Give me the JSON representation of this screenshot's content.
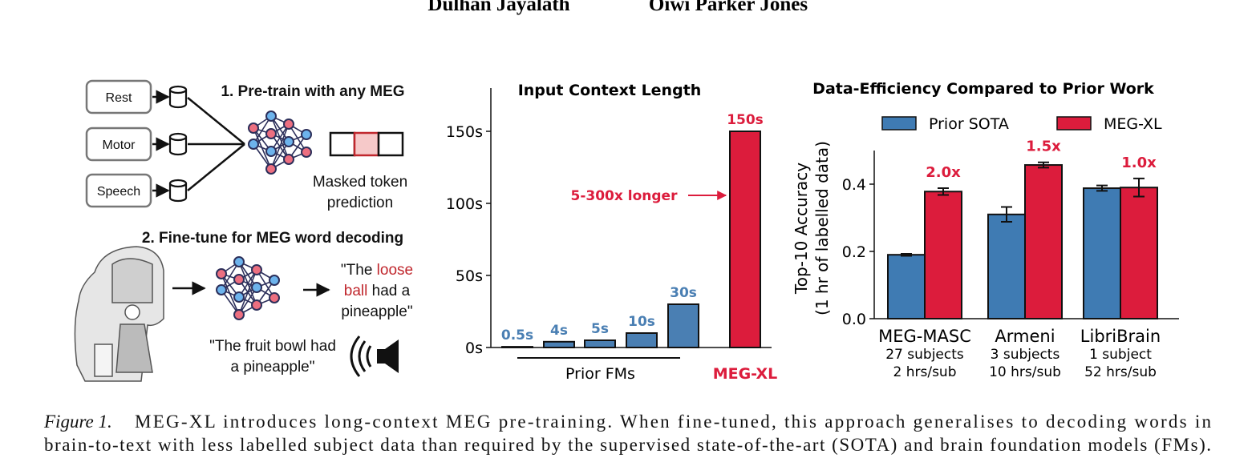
{
  "header": {
    "authors": [
      "Dulhan Jayalath",
      "Oiwi Parker Jones"
    ]
  },
  "diagram": {
    "inputs": [
      "Rest",
      "Motor",
      "Speech"
    ],
    "step1": "1. Pre-train with any MEG",
    "masked_label": [
      "Masked token",
      "prediction"
    ],
    "step2": "2. Fine-tune for MEG word decoding",
    "stimulus": [
      "\"The fruit bowl had",
      "a pineapple\""
    ],
    "decoded": [
      [
        {
          "text": "\"The "
        },
        {
          "text": "loose",
          "highlight": true
        }
      ],
      [
        {
          "text": "ball",
          "highlight": true
        },
        {
          "text": " had a"
        }
      ],
      [
        {
          "text": "pineapple\""
        }
      ]
    ],
    "highlight_color": "#c0272d"
  },
  "chart_data": [
    {
      "type": "bar",
      "title": "Input Context Length",
      "categories": [
        null,
        null,
        null,
        null,
        null,
        null
      ],
      "values": [
        0.5,
        4,
        5,
        10,
        30,
        150
      ],
      "value_labels": [
        "0.5s",
        "4s",
        "5s",
        "10s",
        "30s",
        "150s"
      ],
      "colors": [
        "#4a7fb3",
        "#4a7fb3",
        "#4a7fb3",
        "#4a7fb3",
        "#4a7fb3",
        "#dc1c3c"
      ],
      "ylim": [
        0,
        180
      ],
      "yticks": [
        {
          "value": 0,
          "label": "0s"
        },
        {
          "value": 50,
          "label": "50s"
        },
        {
          "value": 100,
          "label": "100s"
        },
        {
          "value": 150,
          "label": "150s"
        }
      ],
      "groups": [
        {
          "label": "Prior FMs"
        },
        {
          "label": "MEG-XL",
          "color": "#dc1c3c"
        }
      ],
      "annotation": {
        "text": "5-300x longer",
        "color": "#dc1c3c"
      }
    },
    {
      "type": "grouped_bar",
      "title": "Data-Efficiency Compared to Prior Work",
      "ylabel": [
        "Top-10 Accuracy",
        "(1 hr of labelled data)"
      ],
      "categories": [
        "MEG-MASC",
        "Armeni",
        "LibriBrain"
      ],
      "category_details": [
        [
          "27 subjects",
          "2 hrs/sub"
        ],
        [
          "3 subjects",
          "10 hrs/sub"
        ],
        [
          "1 subject",
          "52 hrs/sub"
        ]
      ],
      "series": [
        {
          "name": "Prior SOTA",
          "color": "#3f7bb3",
          "values": [
            0.19,
            0.31,
            0.388
          ],
          "errors": [
            0.003,
            0.022,
            0.008
          ]
        },
        {
          "name": "MEG-XL",
          "color": "#dc1c3c",
          "values": [
            0.378,
            0.457,
            0.39
          ],
          "errors": [
            0.01,
            0.008,
            0.027
          ]
        }
      ],
      "annotations": [
        "2.0x",
        "1.5x",
        "1.0x"
      ],
      "annotation_color": "#dc1c3c",
      "ylim": [
        0,
        0.5
      ],
      "yticks": [
        {
          "value": 0,
          "label": "0.0"
        },
        {
          "value": 0.2,
          "label": "0.2"
        },
        {
          "value": 0.4,
          "label": "0.4"
        }
      ]
    }
  ],
  "caption": {
    "label": "Figure 1.",
    "lines": [
      "MEG-XL introduces long-context MEG pre-training.  When fine-tuned, this approach generalises to decoding words in",
      "brain-to-text with less labelled subject data than required by the supervised state-of-the-art (SOTA) and brain foundation models (FMs)."
    ]
  }
}
